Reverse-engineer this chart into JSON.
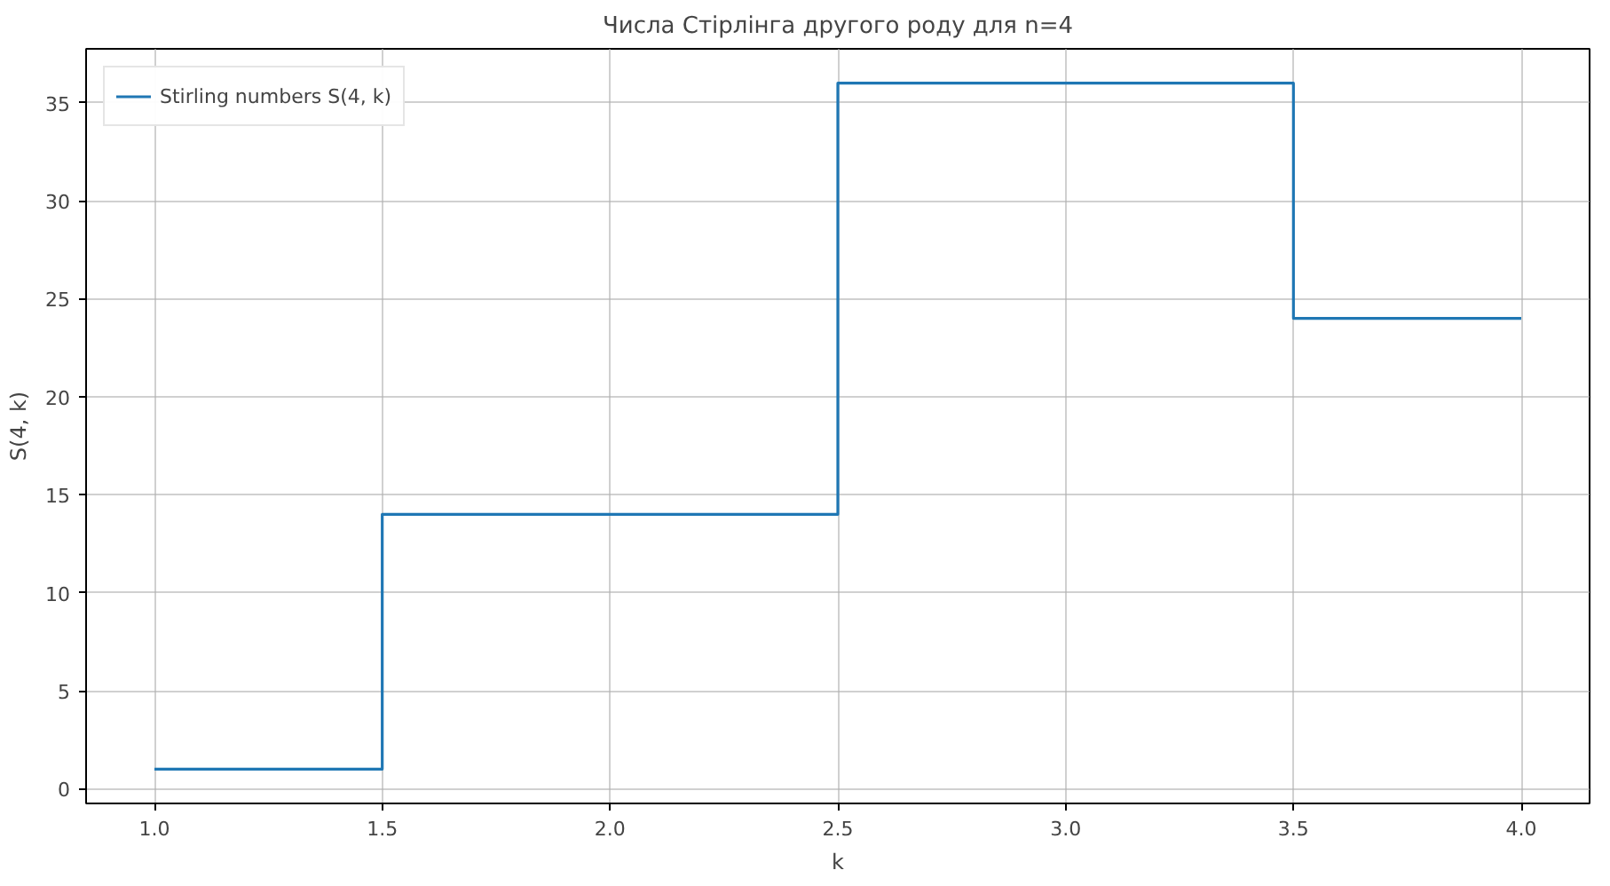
{
  "chart_data": {
    "type": "step",
    "title": "Числа Стірлінга другого роду для n=4",
    "xlabel": "k",
    "ylabel": "S(4, k)",
    "x": [
      1,
      2,
      3,
      4
    ],
    "series": [
      {
        "name": "Stirling numbers S(4, k)",
        "color": "#1f77b4",
        "values": [
          1,
          14,
          36,
          24
        ]
      }
    ],
    "xlim": [
      0.85,
      4.15
    ],
    "ylim": [
      -0.75,
      37.75
    ],
    "xticks": [
      {
        "value": 1,
        "label": "1.0"
      },
      {
        "value": 1.5,
        "label": "1.5"
      },
      {
        "value": 2,
        "label": "2.0"
      },
      {
        "value": 2.5,
        "label": "2.5"
      },
      {
        "value": 3,
        "label": "3.0"
      },
      {
        "value": 3.5,
        "label": "3.5"
      },
      {
        "value": 4,
        "label": "4.0"
      }
    ],
    "yticks": [
      0,
      5,
      10,
      15,
      20,
      25,
      30,
      35
    ],
    "grid": true,
    "legend": "top left"
  }
}
